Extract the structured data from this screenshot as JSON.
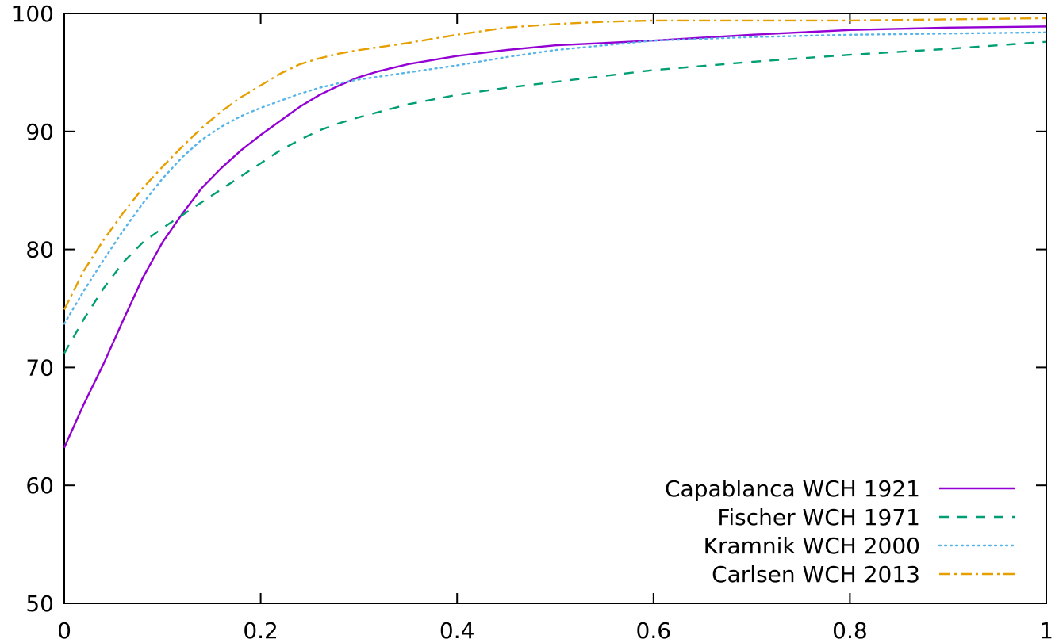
{
  "chart_data": {
    "type": "line",
    "title": "",
    "xlabel": "",
    "ylabel": "",
    "xlim": [
      0,
      1
    ],
    "ylim": [
      50,
      100
    ],
    "x_ticks": [
      0,
      0.2,
      0.4,
      0.6,
      0.8,
      1
    ],
    "x_tick_labels": [
      "0",
      "0.2",
      "0.4",
      "0.6",
      "0.8",
      "1"
    ],
    "y_ticks": [
      50,
      60,
      70,
      80,
      90,
      100
    ],
    "y_tick_labels": [
      "50",
      "60",
      "70",
      "80",
      "90",
      "100"
    ],
    "grid": false,
    "legend_position": "bottom-right",
    "series": [
      {
        "name": "Capablanca WCH 1921",
        "color": "#9400d3",
        "dash": "solid",
        "x": [
          0,
          0.02,
          0.04,
          0.06,
          0.08,
          0.1,
          0.12,
          0.14,
          0.16,
          0.18,
          0.2,
          0.22,
          0.24,
          0.26,
          0.28,
          0.3,
          0.32,
          0.35,
          0.4,
          0.45,
          0.5,
          0.6,
          0.7,
          0.8,
          0.9,
          1.0
        ],
        "values": [
          63.2,
          66.9,
          70.3,
          74.0,
          77.6,
          80.6,
          83.0,
          85.2,
          86.9,
          88.4,
          89.7,
          90.9,
          92.1,
          93.1,
          93.9,
          94.6,
          95.1,
          95.7,
          96.4,
          96.9,
          97.3,
          97.7,
          98.2,
          98.6,
          98.8,
          98.9
        ]
      },
      {
        "name": "Fischer WCH 1971",
        "color": "#009e73",
        "dash": "dashed",
        "x": [
          0,
          0.02,
          0.04,
          0.06,
          0.08,
          0.1,
          0.12,
          0.14,
          0.16,
          0.18,
          0.2,
          0.22,
          0.24,
          0.26,
          0.28,
          0.3,
          0.35,
          0.4,
          0.45,
          0.5,
          0.6,
          0.7,
          0.8,
          0.9,
          1.0
        ],
        "values": [
          71.2,
          74.1,
          76.7,
          78.9,
          80.6,
          81.8,
          82.9,
          84.0,
          85.1,
          86.2,
          87.3,
          88.4,
          89.3,
          90.1,
          90.7,
          91.2,
          92.3,
          93.1,
          93.7,
          94.2,
          95.2,
          95.9,
          96.5,
          97.0,
          97.6
        ]
      },
      {
        "name": "Kramnik WCH 2000",
        "color": "#56b4e9",
        "dash": "dotted",
        "x": [
          0,
          0.02,
          0.04,
          0.06,
          0.08,
          0.1,
          0.12,
          0.14,
          0.16,
          0.18,
          0.2,
          0.22,
          0.24,
          0.26,
          0.28,
          0.3,
          0.35,
          0.4,
          0.45,
          0.5,
          0.6,
          0.7,
          0.8,
          0.9,
          1.0
        ],
        "values": [
          73.7,
          76.5,
          79.1,
          81.6,
          83.9,
          86.0,
          87.8,
          89.3,
          90.4,
          91.3,
          92.0,
          92.6,
          93.2,
          93.7,
          94.1,
          94.4,
          95.0,
          95.6,
          96.3,
          96.9,
          97.7,
          98.0,
          98.2,
          98.3,
          98.4
        ]
      },
      {
        "name": "Carlsen WCH 2013",
        "color": "#e69f00",
        "dash": "dash-dot",
        "x": [
          0,
          0.02,
          0.04,
          0.06,
          0.08,
          0.1,
          0.12,
          0.14,
          0.16,
          0.18,
          0.2,
          0.22,
          0.24,
          0.26,
          0.28,
          0.3,
          0.35,
          0.4,
          0.45,
          0.5,
          0.55,
          0.6,
          0.7,
          0.8,
          0.9,
          1.0
        ],
        "values": [
          74.9,
          78.2,
          80.8,
          83.1,
          85.2,
          87.0,
          88.7,
          90.3,
          91.7,
          92.9,
          93.9,
          94.9,
          95.7,
          96.2,
          96.6,
          96.9,
          97.5,
          98.2,
          98.8,
          99.1,
          99.3,
          99.4,
          99.4,
          99.4,
          99.5,
          99.6
        ]
      }
    ]
  }
}
